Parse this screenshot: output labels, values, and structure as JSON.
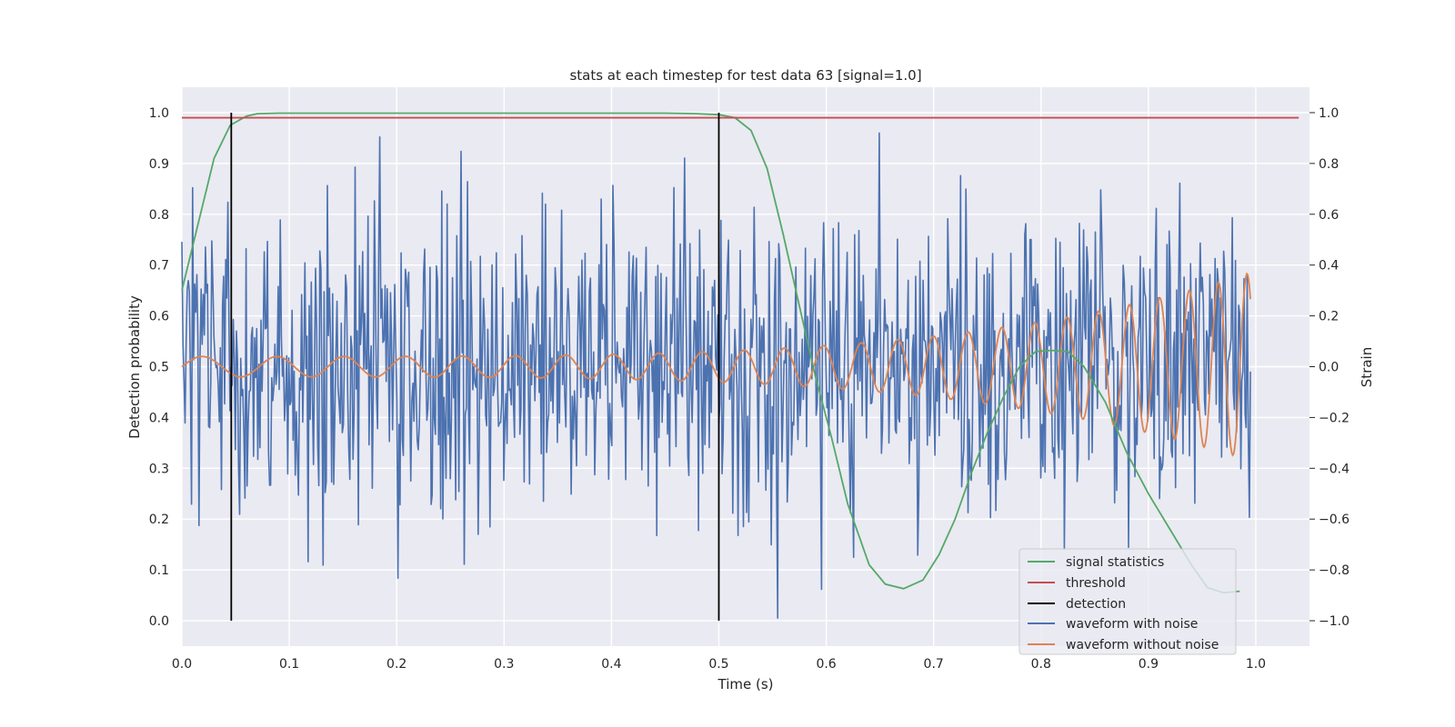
{
  "chart_data": {
    "type": "line",
    "title": "stats at each timestep for test data 63 [signal=1.0]",
    "xlabel": "Time (s)",
    "ylabel_left": "Detection probability",
    "ylabel_right": "Strain",
    "xlim": [
      0.0,
      1.05
    ],
    "ylim_left": [
      -0.05,
      1.05
    ],
    "ylim_right": [
      -1.1,
      1.1
    ],
    "xticks": [
      "0.0",
      "0.1",
      "0.2",
      "0.3",
      "0.4",
      "0.5",
      "0.6",
      "0.7",
      "0.8",
      "0.9",
      "1.0"
    ],
    "yticks_left": [
      "0.0",
      "0.1",
      "0.2",
      "0.3",
      "0.4",
      "0.5",
      "0.6",
      "0.7",
      "0.8",
      "0.9",
      "1.0"
    ],
    "yticks_right": [
      "−1.0",
      "−0.8",
      "−0.6",
      "−0.4",
      "−0.2",
      "0.0",
      "0.2",
      "0.4",
      "0.6",
      "0.8",
      "1.0"
    ],
    "grid": true,
    "legend_position": "lower-right",
    "colors": {
      "background": "#eaeaf2",
      "grid": "#ffffff",
      "signal_statistics": "#55a868",
      "threshold": "#c44e52",
      "detection": "#000000",
      "waveform_with_noise": "#4c72b0",
      "waveform_without_noise": "#dd8452"
    },
    "series": [
      {
        "name": "signal statistics",
        "axis": "left",
        "x": [
          0.0,
          0.03,
          0.045,
          0.06,
          0.07,
          0.09,
          0.12,
          0.2,
          0.3,
          0.4,
          0.45,
          0.48,
          0.5,
          0.515,
          0.53,
          0.545,
          0.56,
          0.575,
          0.59,
          0.605,
          0.62,
          0.64,
          0.655,
          0.672,
          0.69,
          0.705,
          0.72,
          0.735,
          0.75,
          0.765,
          0.78,
          0.795,
          0.81,
          0.825,
          0.84,
          0.86,
          0.88,
          0.9,
          0.92,
          0.94,
          0.955,
          0.97,
          0.985
        ],
        "y": [
          0.65,
          0.91,
          0.975,
          0.993,
          0.998,
          0.999,
          0.999,
          0.999,
          0.999,
          0.999,
          0.999,
          0.998,
          0.996,
          0.99,
          0.965,
          0.89,
          0.76,
          0.62,
          0.48,
          0.36,
          0.23,
          0.11,
          0.072,
          0.063,
          0.08,
          0.13,
          0.2,
          0.29,
          0.37,
          0.44,
          0.5,
          0.53,
          0.532,
          0.53,
          0.5,
          0.43,
          0.33,
          0.25,
          0.18,
          0.11,
          0.065,
          0.055,
          0.058
        ]
      },
      {
        "name": "threshold",
        "axis": "left",
        "x": [
          0.0,
          1.04
        ],
        "y": [
          0.99,
          0.99
        ]
      },
      {
        "name": "detection",
        "axis": "left",
        "type": "vertical-lines",
        "x": [
          0.046,
          0.5
        ],
        "y": [
          0.0,
          1.0
        ]
      },
      {
        "name": "waveform with noise",
        "axis": "right",
        "x_range": [
          0.0,
          0.995
        ],
        "points": 1000,
        "amplitude_min": -1.0,
        "amplitude_max": 1.0
      },
      {
        "name": "waveform without noise",
        "axis": "right",
        "x_range": [
          0.0,
          0.995
        ],
        "chirp": {
          "amplitude_start": 0.04,
          "amplitude_end": 0.37,
          "frequency_start_hz": 13,
          "frequency_end_hz": 38
        }
      }
    ]
  }
}
